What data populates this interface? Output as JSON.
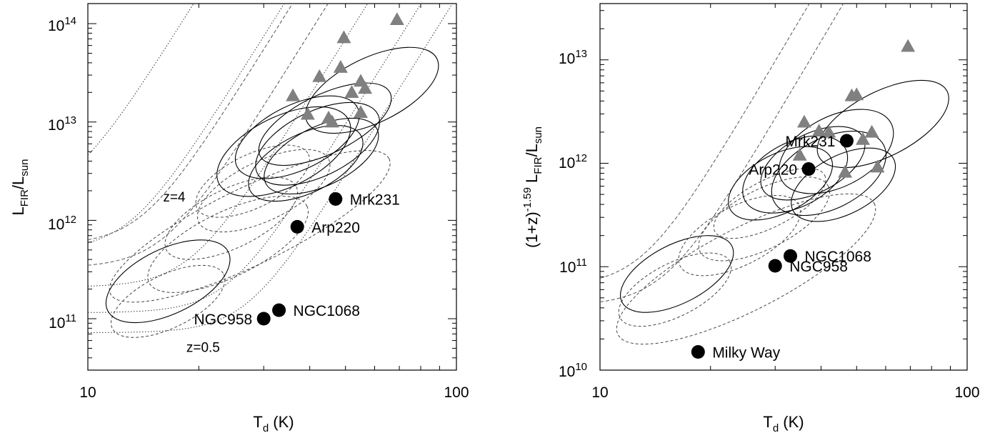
{
  "chart_data": [
    {
      "type": "scatter",
      "title": "",
      "xlabel": "T",
      "xlabel_sub": "d",
      "xlabel_unit": " (K)",
      "ylabel": "L",
      "ylabel_sub1": "FIR",
      "ylabel_mid": "/L",
      "ylabel_sub2": "sun",
      "xscale": "log",
      "yscale": "log",
      "xlim": [
        10,
        100
      ],
      "ylim": [
        30000000000,
        160000000000000
      ],
      "x_tick_labels": [
        "10",
        "100"
      ],
      "y_tick_labels": [
        {
          "base": "10",
          "exp": "11",
          "value": 100000000000
        },
        {
          "base": "10",
          "exp": "12",
          "value": 1000000000000
        },
        {
          "base": "10",
          "exp": "13",
          "value": 10000000000000
        },
        {
          "base": "10",
          "exp": "14",
          "value": 100000000000000
        }
      ],
      "series": [
        {
          "marker": "filled-circle",
          "color": "#000000",
          "points": [
            {
              "x": 47,
              "y": 1650000000000,
              "label": "Mrk231",
              "label_side": "right"
            },
            {
              "x": 37,
              "y": 860000000000,
              "label": "Arp220",
              "label_side": "right"
            },
            {
              "x": 33,
              "y": 122000000000,
              "label": "NGC1068",
              "label_side": "right"
            },
            {
              "x": 30,
              "y": 100000000000,
              "label": "NGC958",
              "label_side": "left"
            }
          ]
        },
        {
          "marker": "filled-triangle",
          "color": "#808080",
          "points": [
            {
              "x": 36,
              "y": 18500000000000
            },
            {
              "x": 39.5,
              "y": 12000000000000
            },
            {
              "x": 42.5,
              "y": 29000000000000
            },
            {
              "x": 48.5,
              "y": 36000000000000
            },
            {
              "x": 49.5,
              "y": 72000000000000
            },
            {
              "x": 52,
              "y": 20000000000000
            },
            {
              "x": 55,
              "y": 26000000000000
            },
            {
              "x": 56.5,
              "y": 22000000000000
            },
            {
              "x": 55,
              "y": 12500000000000
            },
            {
              "x": 69,
              "y": 110000000000000
            },
            {
              "x": 45,
              "y": 11000000000000
            },
            {
              "x": 46,
              "y": 10000000000000
            }
          ]
        }
      ],
      "ellipses_solid": [
        {
          "x": 59,
          "y": 21000000000000,
          "rx": 0.055,
          "ry": 0.14
        },
        {
          "x": 44,
          "y": 9500000000000,
          "rx": 0.05,
          "ry": 0.14
        },
        {
          "x": 37,
          "y": 7000000000000,
          "rx": 0.055,
          "ry": 0.13
        },
        {
          "x": 42,
          "y": 6000000000000,
          "rx": 0.055,
          "ry": 0.13
        },
        {
          "x": 34,
          "y": 5000000000000,
          "rx": 0.06,
          "ry": 0.14
        },
        {
          "x": 43,
          "y": 4500000000000,
          "rx": 0.05,
          "ry": 0.12
        },
        {
          "x": 39,
          "y": 3800000000000,
          "rx": 0.05,
          "ry": 0.12
        },
        {
          "x": 16.5,
          "y": 240000000000,
          "rx": 0.055,
          "ry": 0.13
        }
      ],
      "ellipses_dashed": [
        {
          "x": 28,
          "y": 2500000000000,
          "rx": 0.045,
          "ry": 0.12
        },
        {
          "x": 30,
          "y": 2000000000000,
          "rx": 0.05,
          "ry": 0.14
        },
        {
          "x": 24.5,
          "y": 1050000000000,
          "rx": 0.05,
          "ry": 0.14
        },
        {
          "x": 27.5,
          "y": 870000000000,
          "rx": 0.065,
          "ry": 0.3
        },
        {
          "x": 24,
          "y": 570000000000,
          "rx": 0.055,
          "ry": 0.17
        },
        {
          "x": 16.5,
          "y": 150000000000,
          "rx": 0.045,
          "ry": 0.12
        }
      ],
      "curves": [
        {
          "label": "z=4",
          "style": "dotted",
          "T0": 9,
          "L0": 1600000000000
        },
        {
          "style": "dotted",
          "T0": 13,
          "L0": 490000000000
        },
        {
          "style": "dashed",
          "T0": 14,
          "L0": 560000000000
        },
        {
          "style": "dashed",
          "T0": 16,
          "L0": 330000000000
        },
        {
          "style": "dotted",
          "T0": 19,
          "L0": 210000000000
        },
        {
          "style": "dotted",
          "T0": 24,
          "L0": 115000000000
        },
        {
          "label": "z=0.5",
          "style": "dotted",
          "T0": 27,
          "L0": 72000000000
        }
      ],
      "curve_labels": [
        {
          "text": "z=4",
          "x": 16,
          "y": 1550000000000
        },
        {
          "text": "z=0.5",
          "x": 18.5,
          "y": 46000000000
        }
      ]
    },
    {
      "type": "scatter",
      "title": "",
      "xlabel": "T",
      "xlabel_sub": "d",
      "xlabel_unit": " (K)",
      "ylabel": "(1+z)",
      "ylabel_sup": "-1.59",
      "ylabel_mid": " L",
      "ylabel_sub1": "FIR",
      "ylabel_mid2": "/L",
      "ylabel_sub2": "sun",
      "xscale": "log",
      "yscale": "log",
      "xlim": [
        10,
        100
      ],
      "ylim": [
        10000000000,
        35000000000000
      ],
      "x_tick_labels": [
        "10",
        "100"
      ],
      "y_tick_labels": [
        {
          "base": "10",
          "exp": "10",
          "value": 10000000000
        },
        {
          "base": "10",
          "exp": "11",
          "value": 100000000000
        },
        {
          "base": "10",
          "exp": "12",
          "value": 1000000000000
        },
        {
          "base": "10",
          "exp": "13",
          "value": 10000000000000
        }
      ],
      "series": [
        {
          "marker": "filled-circle",
          "color": "#000000",
          "points": [
            {
              "x": 47,
              "y": 1650000000000,
              "label": "Mrk231",
              "label_side": "left"
            },
            {
              "x": 37,
              "y": 880000000000,
              "label": "Arp220",
              "label_side": "left"
            },
            {
              "x": 33,
              "y": 127000000000,
              "label": "NGC1068",
              "label_side": "right"
            },
            {
              "x": 30,
              "y": 102000000000,
              "label": "NGC958",
              "label_side": "right"
            },
            {
              "x": 18.5,
              "y": 15000000000,
              "label": "Milky Way",
              "label_side": "right"
            }
          ]
        },
        {
          "marker": "filled-triangle",
          "color": "#808080",
          "points": [
            {
              "x": 36,
              "y": 2500000000000
            },
            {
              "x": 39.5,
              "y": 2050000000000
            },
            {
              "x": 42,
              "y": 2000000000000
            },
            {
              "x": 35,
              "y": 1200000000000
            },
            {
              "x": 46.5,
              "y": 820000000000
            },
            {
              "x": 48.5,
              "y": 4500000000000
            },
            {
              "x": 50,
              "y": 4600000000000
            },
            {
              "x": 52,
              "y": 1700000000000
            },
            {
              "x": 55,
              "y": 2000000000000
            },
            {
              "x": 57,
              "y": 920000000000
            },
            {
              "x": 69,
              "y": 13500000000000
            }
          ]
        }
      ],
      "ellipses_solid": [
        {
          "x": 59,
          "y": 2400000000000,
          "rx": 0.055,
          "ry": 0.14
        },
        {
          "x": 44,
          "y": 1300000000000,
          "rx": 0.06,
          "ry": 0.12
        },
        {
          "x": 38,
          "y": 1000000000000,
          "rx": 0.05,
          "ry": 0.11
        },
        {
          "x": 42,
          "y": 800000000000,
          "rx": 0.06,
          "ry": 0.12
        },
        {
          "x": 34,
          "y": 780000000000,
          "rx": 0.055,
          "ry": 0.11
        },
        {
          "x": 46,
          "y": 620000000000,
          "rx": 0.05,
          "ry": 0.11
        },
        {
          "x": 31,
          "y": 640000000000,
          "rx": 0.05,
          "ry": 0.11
        },
        {
          "x": 16.2,
          "y": 85000000000,
          "rx": 0.05,
          "ry": 0.12
        }
      ],
      "ellipses_dashed": [
        {
          "x": 29,
          "y": 410000000000,
          "rx": 0.04,
          "ry": 0.12
        },
        {
          "x": 28,
          "y": 290000000000,
          "rx": 0.05,
          "ry": 0.14
        },
        {
          "x": 24,
          "y": 200000000000,
          "rx": 0.05,
          "ry": 0.13
        },
        {
          "x": 25,
          "y": 95000000000,
          "rx": 0.07,
          "ry": 0.28
        },
        {
          "x": 16,
          "y": 60000000000,
          "rx": 0.045,
          "ry": 0.12
        }
      ],
      "curves": [
        {
          "style": "dashed",
          "T0": 13,
          "L0": 64000000000
        },
        {
          "style": "dashed",
          "T0": 15,
          "L0": 42000000000
        }
      ]
    }
  ]
}
